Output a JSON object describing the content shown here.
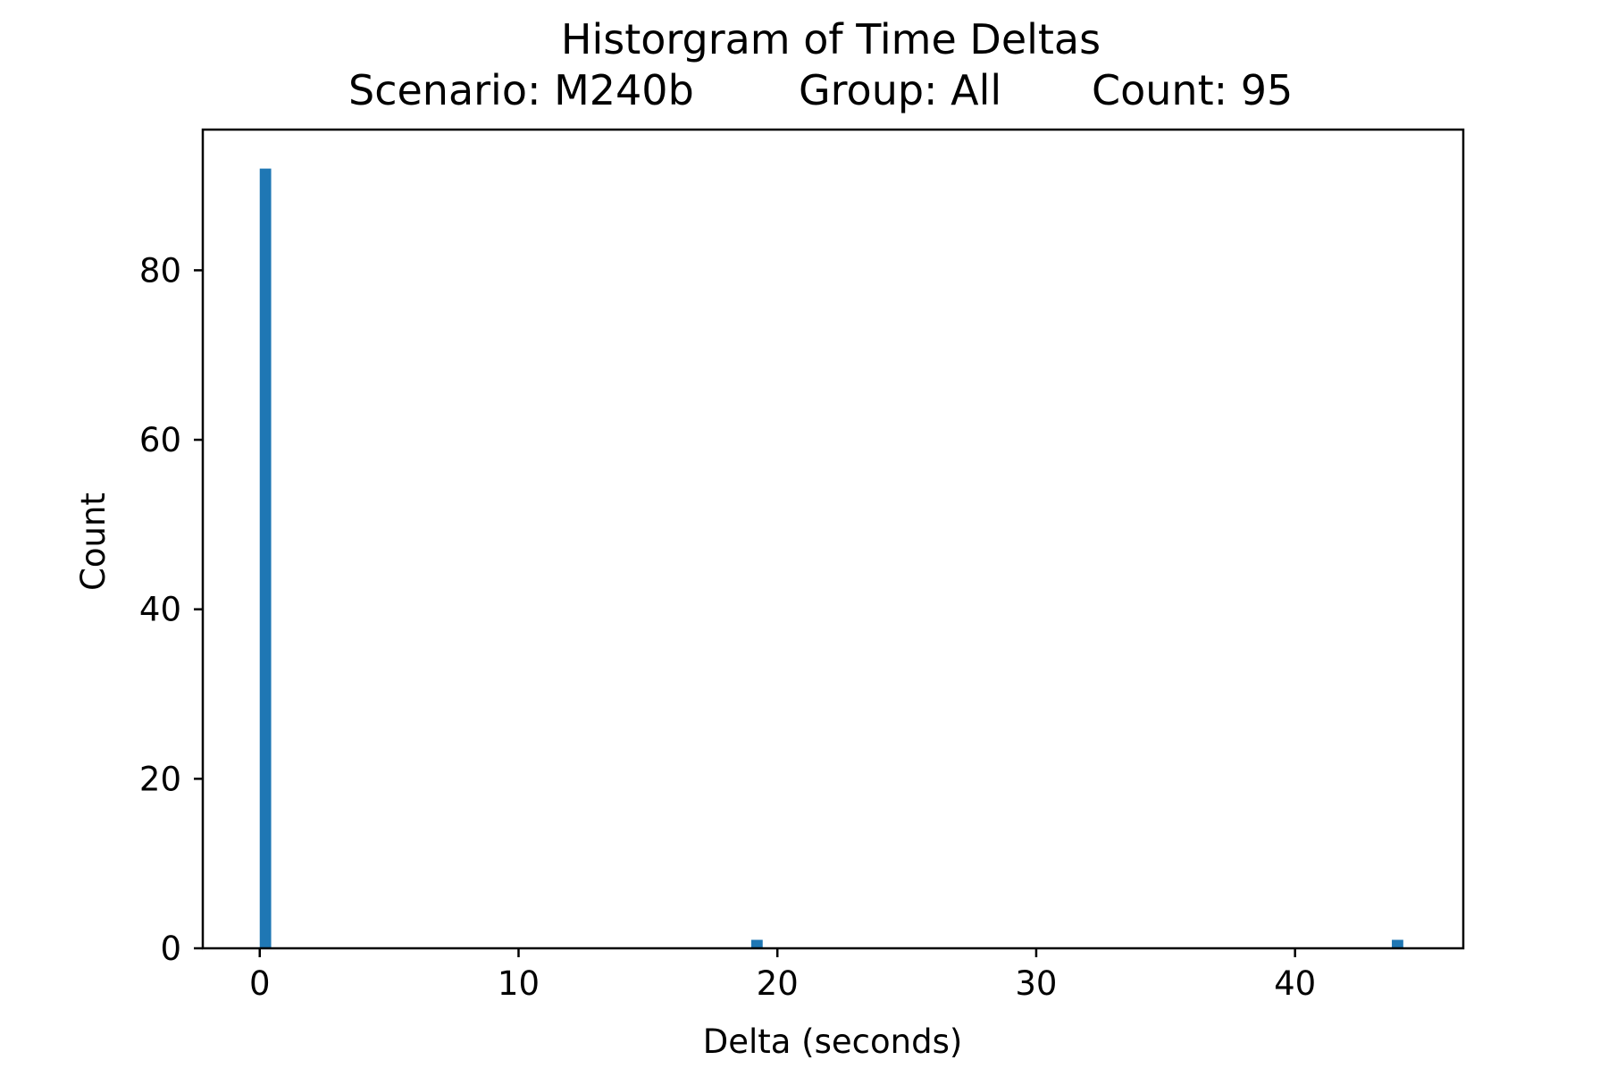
{
  "chart_data": {
    "type": "bar",
    "title": "Historgram of Time Deltas",
    "subtitle": {
      "scenario": "Scenario: M240b",
      "group": "Group: All",
      "count": "Count: 95"
    },
    "xlabel": "Delta (seconds)",
    "ylabel": "Count",
    "xlim": [
      -2.2,
      46.5
    ],
    "ylim": [
      0,
      96.6
    ],
    "xticks": [
      0,
      10,
      20,
      30,
      40
    ],
    "yticks": [
      0,
      20,
      40,
      60,
      80
    ],
    "bin_width": 0.442,
    "bars": [
      {
        "x0": 0.0,
        "count": 92
      },
      {
        "x0": 18.99,
        "count": 1
      },
      {
        "x0": 43.74,
        "count": 1
      }
    ],
    "colors": {
      "bar": "#1f77b4",
      "axis": "#000000"
    },
    "grid": false,
    "legend": "none"
  }
}
